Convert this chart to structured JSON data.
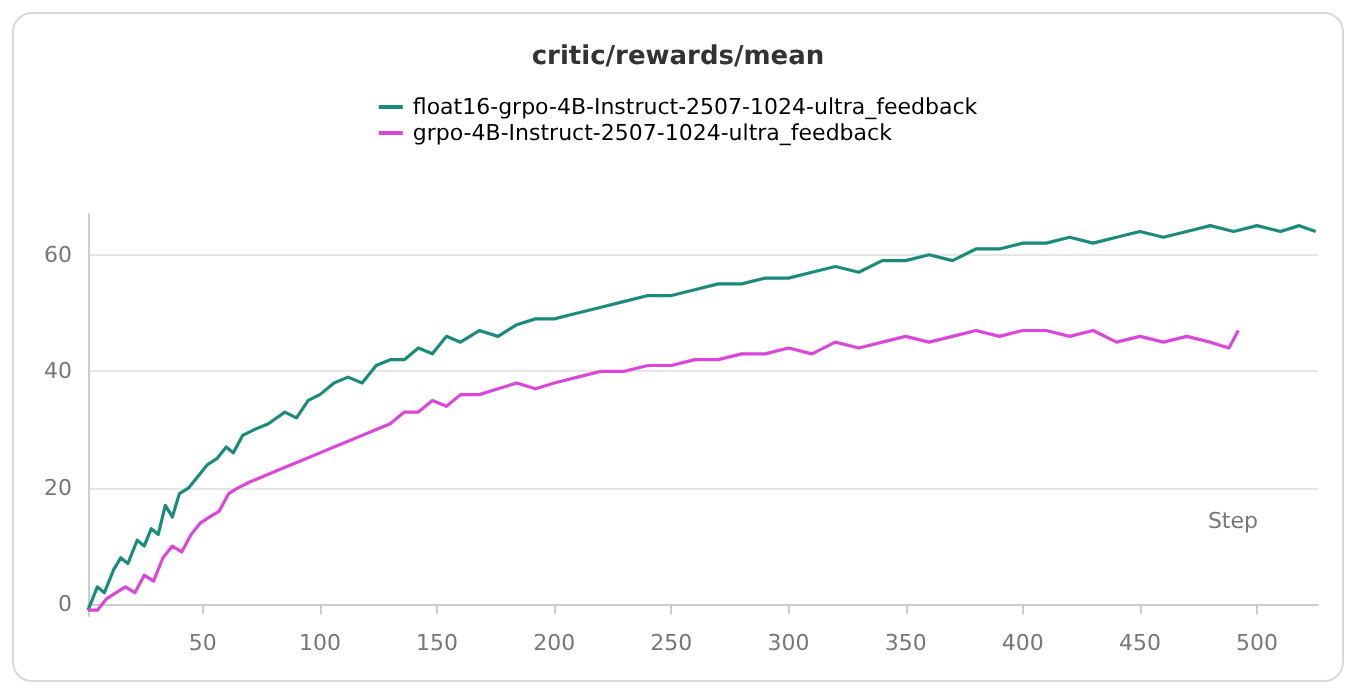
{
  "chart_data": {
    "type": "line",
    "title": "critic/rewards/mean",
    "xlabel": "Step",
    "legend": "top",
    "grid": "y",
    "marker": "none",
    "line_style": "solid",
    "xlim": [
      1,
      526
    ],
    "xticks": [
      50,
      100,
      150,
      200,
      250,
      300,
      350,
      400,
      450,
      500
    ],
    "ylim": [
      -2,
      67
    ],
    "yticks": [
      0,
      20,
      40,
      60
    ],
    "series": [
      {
        "name": "float16-grpo-4B-Instruct-2507-1024-ultra_feedback",
        "color": "#1a8a7a",
        "x": [
          1,
          5,
          8,
          12,
          15,
          18,
          22,
          25,
          28,
          31,
          34,
          37,
          40,
          44,
          48,
          52,
          56,
          60,
          63,
          67,
          72,
          78,
          85,
          90,
          95,
          100,
          106,
          112,
          118,
          124,
          130,
          136,
          142,
          148,
          154,
          160,
          168,
          176,
          184,
          192,
          200,
          210,
          220,
          230,
          240,
          250,
          260,
          270,
          280,
          290,
          300,
          310,
          320,
          330,
          340,
          350,
          360,
          370,
          380,
          390,
          400,
          410,
          420,
          430,
          440,
          450,
          460,
          470,
          480,
          490,
          500,
          510,
          518,
          525
        ],
        "values": [
          -1,
          3,
          2,
          6,
          8,
          7,
          11,
          10,
          13,
          12,
          17,
          15,
          19,
          20,
          22,
          24,
          25,
          27,
          26,
          29,
          30,
          31,
          33,
          32,
          35,
          36,
          38,
          39,
          38,
          41,
          42,
          42,
          44,
          43,
          46,
          45,
          47,
          46,
          48,
          49,
          49,
          50,
          51,
          52,
          53,
          53,
          54,
          55,
          55,
          56,
          56,
          57,
          58,
          57,
          59,
          59,
          60,
          59,
          61,
          61,
          62,
          62,
          63,
          62,
          63,
          64,
          63,
          64,
          65,
          64,
          65,
          64,
          65,
          64
        ]
      },
      {
        "name": "grpo-4B-Instruct-2507-1024-ultra_feedback",
        "color": "#d946d9",
        "x": [
          1,
          5,
          9,
          13,
          17,
          21,
          25,
          29,
          33,
          37,
          41,
          45,
          49,
          53,
          57,
          61,
          65,
          70,
          76,
          82,
          88,
          94,
          100,
          106,
          112,
          118,
          124,
          130,
          136,
          142,
          148,
          154,
          160,
          168,
          176,
          184,
          192,
          200,
          210,
          220,
          230,
          240,
          250,
          260,
          270,
          280,
          290,
          300,
          310,
          320,
          330,
          340,
          350,
          360,
          370,
          380,
          390,
          400,
          410,
          420,
          430,
          440,
          450,
          460,
          470,
          480,
          488,
          492
        ],
        "values": [
          -1,
          -1,
          1,
          2,
          3,
          2,
          5,
          4,
          8,
          10,
          9,
          12,
          14,
          15,
          16,
          19,
          20,
          21,
          22,
          23,
          24,
          25,
          26,
          27,
          28,
          29,
          30,
          31,
          33,
          33,
          35,
          34,
          36,
          36,
          37,
          38,
          37,
          38,
          39,
          40,
          40,
          41,
          41,
          42,
          42,
          43,
          43,
          44,
          43,
          45,
          44,
          45,
          46,
          45,
          46,
          47,
          46,
          47,
          47,
          46,
          47,
          45,
          46,
          45,
          46,
          45,
          44,
          47
        ]
      }
    ]
  }
}
